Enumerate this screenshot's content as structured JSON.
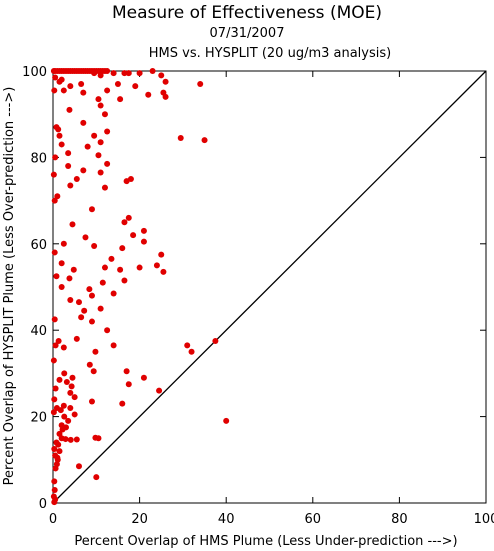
{
  "chart_data": {
    "type": "scatter",
    "title": "Measure of Effectiveness (MOE)",
    "subtitle": "07/31/2007",
    "subtitle2": "HMS vs. HYSPLIT  (20 ug/m3 analysis)",
    "xlabel": "Percent Overlap of HMS Plume (Less Under-prediction --->)",
    "ylabel": "Percent Overlap of HYSPLIT Plume (Less Over-prediction --->)",
    "xlim": [
      0,
      100
    ],
    "ylim": [
      0,
      100
    ],
    "xticks": [
      "0",
      "20",
      "40",
      "60",
      "80",
      "100"
    ],
    "yticks": [
      "0",
      "20",
      "40",
      "60",
      "80",
      "100"
    ],
    "grid": false,
    "marker_color": "#e00000",
    "reference_line": {
      "from": [
        0,
        0
      ],
      "to": [
        100,
        100
      ]
    },
    "series": [
      {
        "points": [
          [
            0.3,
            0.2
          ],
          [
            0.5,
            0.8
          ],
          [
            0.2,
            1.5
          ],
          [
            0.4,
            3.0
          ],
          [
            0.3,
            5.0
          ],
          [
            0.6,
            8.0
          ],
          [
            0.9,
            9.0
          ],
          [
            1.1,
            10.0
          ],
          [
            0.5,
            11.0
          ],
          [
            1.5,
            12.0
          ],
          [
            0.3,
            12.5
          ],
          [
            1.2,
            13.5
          ],
          [
            0.8,
            14.0
          ],
          [
            2.0,
            15.0
          ],
          [
            2.9,
            14.8
          ],
          [
            4.1,
            14.6
          ],
          [
            5.5,
            14.7
          ],
          [
            9.8,
            15.1
          ],
          [
            10.5,
            15.0
          ],
          [
            1.5,
            16.0
          ],
          [
            2.2,
            17.0
          ],
          [
            3.0,
            17.5
          ],
          [
            2.0,
            18.0
          ],
          [
            3.5,
            19.0
          ],
          [
            2.6,
            20.0
          ],
          [
            5.0,
            20.5
          ],
          [
            0.2,
            21.0
          ],
          [
            1.8,
            21.5
          ],
          [
            0.9,
            22.0
          ],
          [
            2.5,
            22.5
          ],
          [
            4.0,
            22.0
          ],
          [
            0.3,
            24.0
          ],
          [
            9.0,
            23.5
          ],
          [
            5.0,
            24.5
          ],
          [
            4.0,
            25.5
          ],
          [
            0.6,
            26.5
          ],
          [
            4.3,
            27.0
          ],
          [
            3.2,
            28.0
          ],
          [
            1.5,
            28.5
          ],
          [
            4.5,
            29.0
          ],
          [
            2.6,
            30.0
          ],
          [
            9.4,
            30.5
          ],
          [
            8.5,
            32.0
          ],
          [
            16.0,
            23.0
          ],
          [
            24.5,
            26.0
          ],
          [
            21.0,
            29.0
          ],
          [
            17.5,
            27.5
          ],
          [
            17.0,
            30.5
          ],
          [
            0.2,
            33.0
          ],
          [
            0.6,
            36.5
          ],
          [
            2.5,
            36.0
          ],
          [
            1.3,
            37.5
          ],
          [
            14.0,
            36.5
          ],
          [
            9.8,
            35.0
          ],
          [
            5.5,
            38.0
          ],
          [
            12.5,
            40.0
          ],
          [
            0.4,
            42.5
          ],
          [
            6.5,
            43.0
          ],
          [
            9.0,
            42.0
          ],
          [
            7.2,
            44.5
          ],
          [
            11.0,
            45.0
          ],
          [
            6.0,
            46.5
          ],
          [
            4.0,
            47.0
          ],
          [
            9.0,
            48.0
          ],
          [
            14.0,
            48.5
          ],
          [
            8.4,
            49.5
          ],
          [
            2.0,
            50.0
          ],
          [
            11.5,
            51.0
          ],
          [
            3.8,
            52.0
          ],
          [
            16.5,
            51.5
          ],
          [
            0.8,
            52.5
          ],
          [
            4.8,
            54.0
          ],
          [
            12.0,
            54.5
          ],
          [
            15.5,
            54.0
          ],
          [
            20.0,
            54.5
          ],
          [
            24.0,
            55.0
          ],
          [
            25.5,
            53.5
          ],
          [
            2.0,
            55.5
          ],
          [
            13.5,
            56.5
          ],
          [
            25.0,
            57.5
          ],
          [
            0.4,
            58.0
          ],
          [
            9.5,
            59.5
          ],
          [
            16.0,
            59.0
          ],
          [
            2.5,
            60.0
          ],
          [
            21.0,
            60.5
          ],
          [
            7.5,
            61.5
          ],
          [
            18.5,
            62.0
          ],
          [
            21.0,
            63.0
          ],
          [
            4.5,
            64.5
          ],
          [
            16.5,
            65.0
          ],
          [
            17.5,
            66.0
          ],
          [
            9.0,
            68.0
          ],
          [
            0.4,
            70.0
          ],
          [
            1.0,
            71.0
          ],
          [
            4.0,
            73.5
          ],
          [
            12.0,
            73.0
          ],
          [
            17.0,
            74.5
          ],
          [
            18.0,
            75.0
          ],
          [
            5.5,
            75.0
          ],
          [
            0.2,
            76.0
          ],
          [
            11.0,
            76.5
          ],
          [
            7.0,
            77.0
          ],
          [
            12.5,
            78.5
          ],
          [
            3.5,
            78.0
          ],
          [
            0.5,
            80.0
          ],
          [
            10.5,
            80.5
          ],
          [
            3.5,
            81.0
          ],
          [
            2.0,
            83.0
          ],
          [
            8.0,
            82.5
          ],
          [
            11.0,
            83.5
          ],
          [
            1.5,
            85.0
          ],
          [
            9.5,
            85.0
          ],
          [
            12.5,
            86.0
          ],
          [
            29.5,
            84.5
          ],
          [
            35.0,
            84.0
          ],
          [
            1.2,
            86.5
          ],
          [
            0.8,
            87.0
          ],
          [
            7.0,
            88.0
          ],
          [
            12.0,
            90.0
          ],
          [
            3.8,
            91.0
          ],
          [
            11.0,
            92.0
          ],
          [
            10.5,
            93.5
          ],
          [
            15.5,
            93.5
          ],
          [
            22.0,
            94.5
          ],
          [
            25.5,
            95.0
          ],
          [
            26.0,
            94.0
          ],
          [
            0.3,
            95.5
          ],
          [
            2.5,
            95.5
          ],
          [
            7.0,
            95.0
          ],
          [
            12.5,
            95.5
          ],
          [
            4.0,
            96.5
          ],
          [
            19.0,
            96.5
          ],
          [
            15.0,
            97.0
          ],
          [
            34.0,
            97.0
          ],
          [
            1.5,
            97.5
          ],
          [
            6.5,
            97.0
          ],
          [
            26.0,
            97.5
          ],
          [
            0.5,
            98.5
          ],
          [
            2.0,
            98.0
          ],
          [
            11.0,
            99.0
          ],
          [
            9.5,
            99.5
          ],
          [
            14.0,
            99.5
          ],
          [
            20.0,
            99.5
          ],
          [
            17.5,
            99.5
          ],
          [
            16.5,
            99.5
          ],
          [
            25.0,
            99.0
          ],
          [
            23.0,
            100.0
          ],
          [
            0.2,
            100.0
          ],
          [
            0.5,
            100.0
          ],
          [
            1.0,
            100.0
          ],
          [
            1.5,
            100.0
          ],
          [
            2.0,
            100.0
          ],
          [
            2.5,
            100.0
          ],
          [
            3.0,
            100.0
          ],
          [
            3.5,
            100.0
          ],
          [
            4.0,
            100.0
          ],
          [
            4.5,
            100.0
          ],
          [
            5.0,
            100.0
          ],
          [
            5.5,
            100.0
          ],
          [
            6.0,
            100.0
          ],
          [
            6.5,
            100.0
          ],
          [
            7.0,
            100.0
          ],
          [
            7.5,
            100.0
          ],
          [
            8.0,
            100.0
          ],
          [
            8.5,
            100.0
          ],
          [
            9.0,
            100.0
          ],
          [
            9.5,
            100.0
          ],
          [
            10.0,
            100.0
          ],
          [
            10.5,
            100.0
          ],
          [
            11.0,
            100.0
          ],
          [
            11.5,
            100.0
          ],
          [
            12.0,
            100.0
          ],
          [
            12.5,
            100.0
          ],
          [
            31.0,
            36.5
          ],
          [
            32.0,
            35.0
          ],
          [
            37.5,
            37.5
          ],
          [
            40.0,
            19.0
          ],
          [
            10.0,
            6.0
          ],
          [
            6.0,
            8.5
          ],
          [
            1.0,
            10.5
          ]
        ]
      }
    ]
  }
}
